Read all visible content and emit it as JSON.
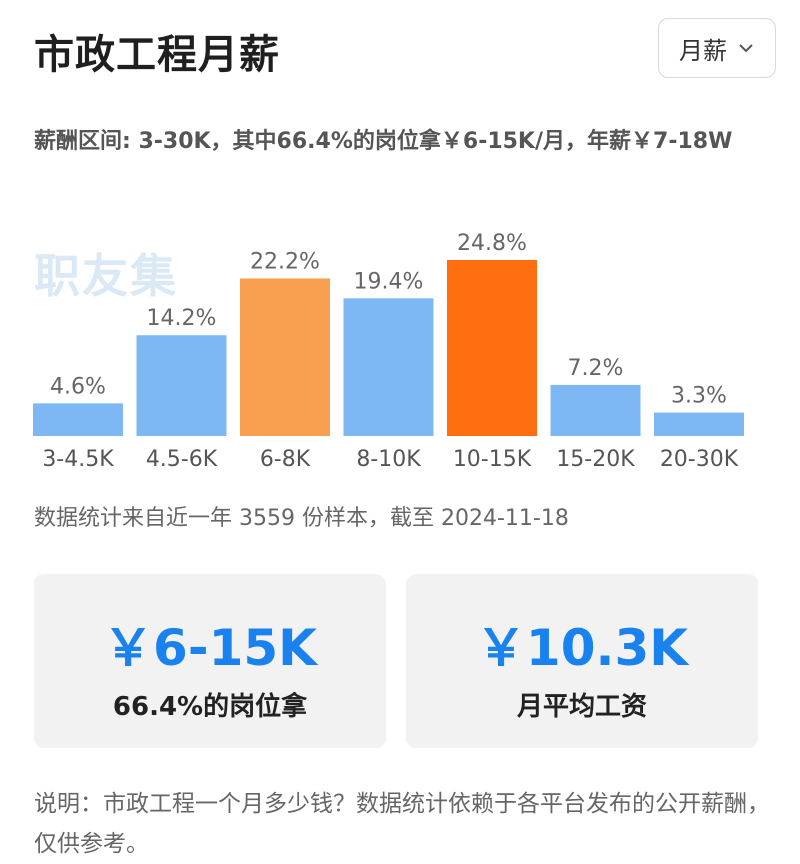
{
  "header": {
    "title": "市政工程月薪",
    "period_select_value": "月薪"
  },
  "summary": {
    "text": "薪酬区间: 3-30K，其中66.4%的岗位拿￥6-15K/月，年薪￥7-18W"
  },
  "watermark": "职友集",
  "chart_data": {
    "type": "bar",
    "categories": [
      "3-4.5K",
      "4.5-6K",
      "6-8K",
      "8-10K",
      "10-15K",
      "15-20K",
      "20-30K"
    ],
    "values": [
      4.6,
      14.2,
      22.2,
      19.4,
      24.8,
      7.2,
      3.3
    ],
    "value_labels": [
      "4.6%",
      "14.2%",
      "22.2%",
      "19.4%",
      "24.8%",
      "7.2%",
      "3.3%"
    ],
    "ylim": [
      0,
      24.8
    ],
    "colors": [
      "#7db8f5",
      "#7db8f5",
      "#f9a050",
      "#7db8f5",
      "#ff6f10",
      "#7db8f5",
      "#7db8f5"
    ],
    "grid": false,
    "legend": "none"
  },
  "footnote": "数据统计来自近一年 3559 份样本，截至 2024-11-18",
  "cards": [
    {
      "value": "￥6-15K",
      "label": "66.4%的岗位拿"
    },
    {
      "value": "￥10.3K",
      "label": "月平均工资"
    }
  ],
  "note": "说明：市政工程一个月多少钱？数据统计依赖于各平台发布的公开薪酬，仅供参考。"
}
